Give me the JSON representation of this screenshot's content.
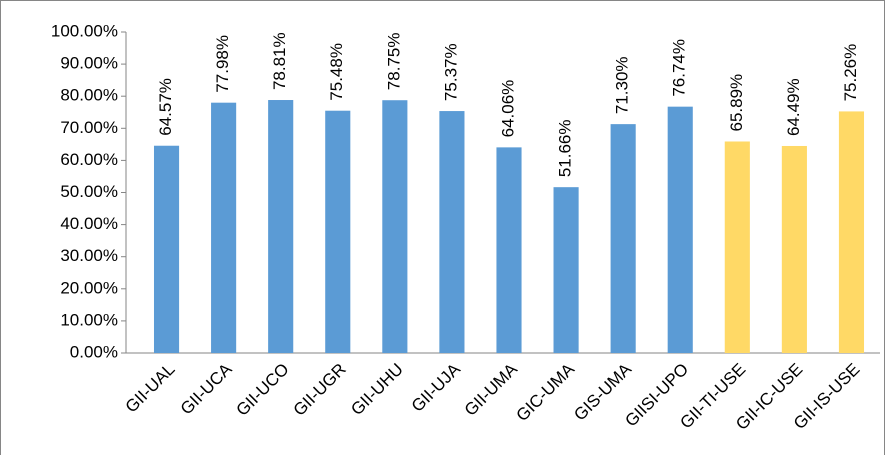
{
  "chart_data": {
    "type": "bar",
    "categories": [
      "GII-UAL",
      "GII-UCA",
      "GII-UCO",
      "GII-UGR",
      "GII-UHU",
      "GII-UJA",
      "GII-UMA",
      "GIC-UMA",
      "GIS-UMA",
      "GIISI-UPO",
      "GII-TI-USE",
      "GII-IC-USE",
      "GII-IS-USE"
    ],
    "values": [
      64.57,
      77.98,
      78.81,
      75.48,
      78.75,
      75.37,
      64.06,
      51.66,
      71.3,
      76.74,
      65.89,
      64.49,
      75.26
    ],
    "value_labels": [
      "64.57%",
      "77.98%",
      "78.81%",
      "75.48%",
      "78.75%",
      "75.37%",
      "64.06%",
      "51.66%",
      "71.30%",
      "76.74%",
      "65.89%",
      "64.49%",
      "75.26%"
    ],
    "colors": [
      "#5b9bd5",
      "#5b9bd5",
      "#5b9bd5",
      "#5b9bd5",
      "#5b9bd5",
      "#5b9bd5",
      "#5b9bd5",
      "#5b9bd5",
      "#5b9bd5",
      "#5b9bd5",
      "#ffd966",
      "#ffd966",
      "#ffd966"
    ],
    "ylim": [
      0,
      100
    ],
    "yticks": [
      {
        "value": 0,
        "label": "0.00%"
      },
      {
        "value": 10,
        "label": "10.00%"
      },
      {
        "value": 20,
        "label": "20.00%"
      },
      {
        "value": 30,
        "label": "30.00%"
      },
      {
        "value": 40,
        "label": "40.00%"
      },
      {
        "value": 50,
        "label": "50.00%"
      },
      {
        "value": 60,
        "label": "60.00%"
      },
      {
        "value": 70,
        "label": "70.00%"
      },
      {
        "value": 80,
        "label": "80.00%"
      },
      {
        "value": 90,
        "label": "90.00%"
      },
      {
        "value": 100,
        "label": "100.00%"
      }
    ],
    "grid": false
  }
}
